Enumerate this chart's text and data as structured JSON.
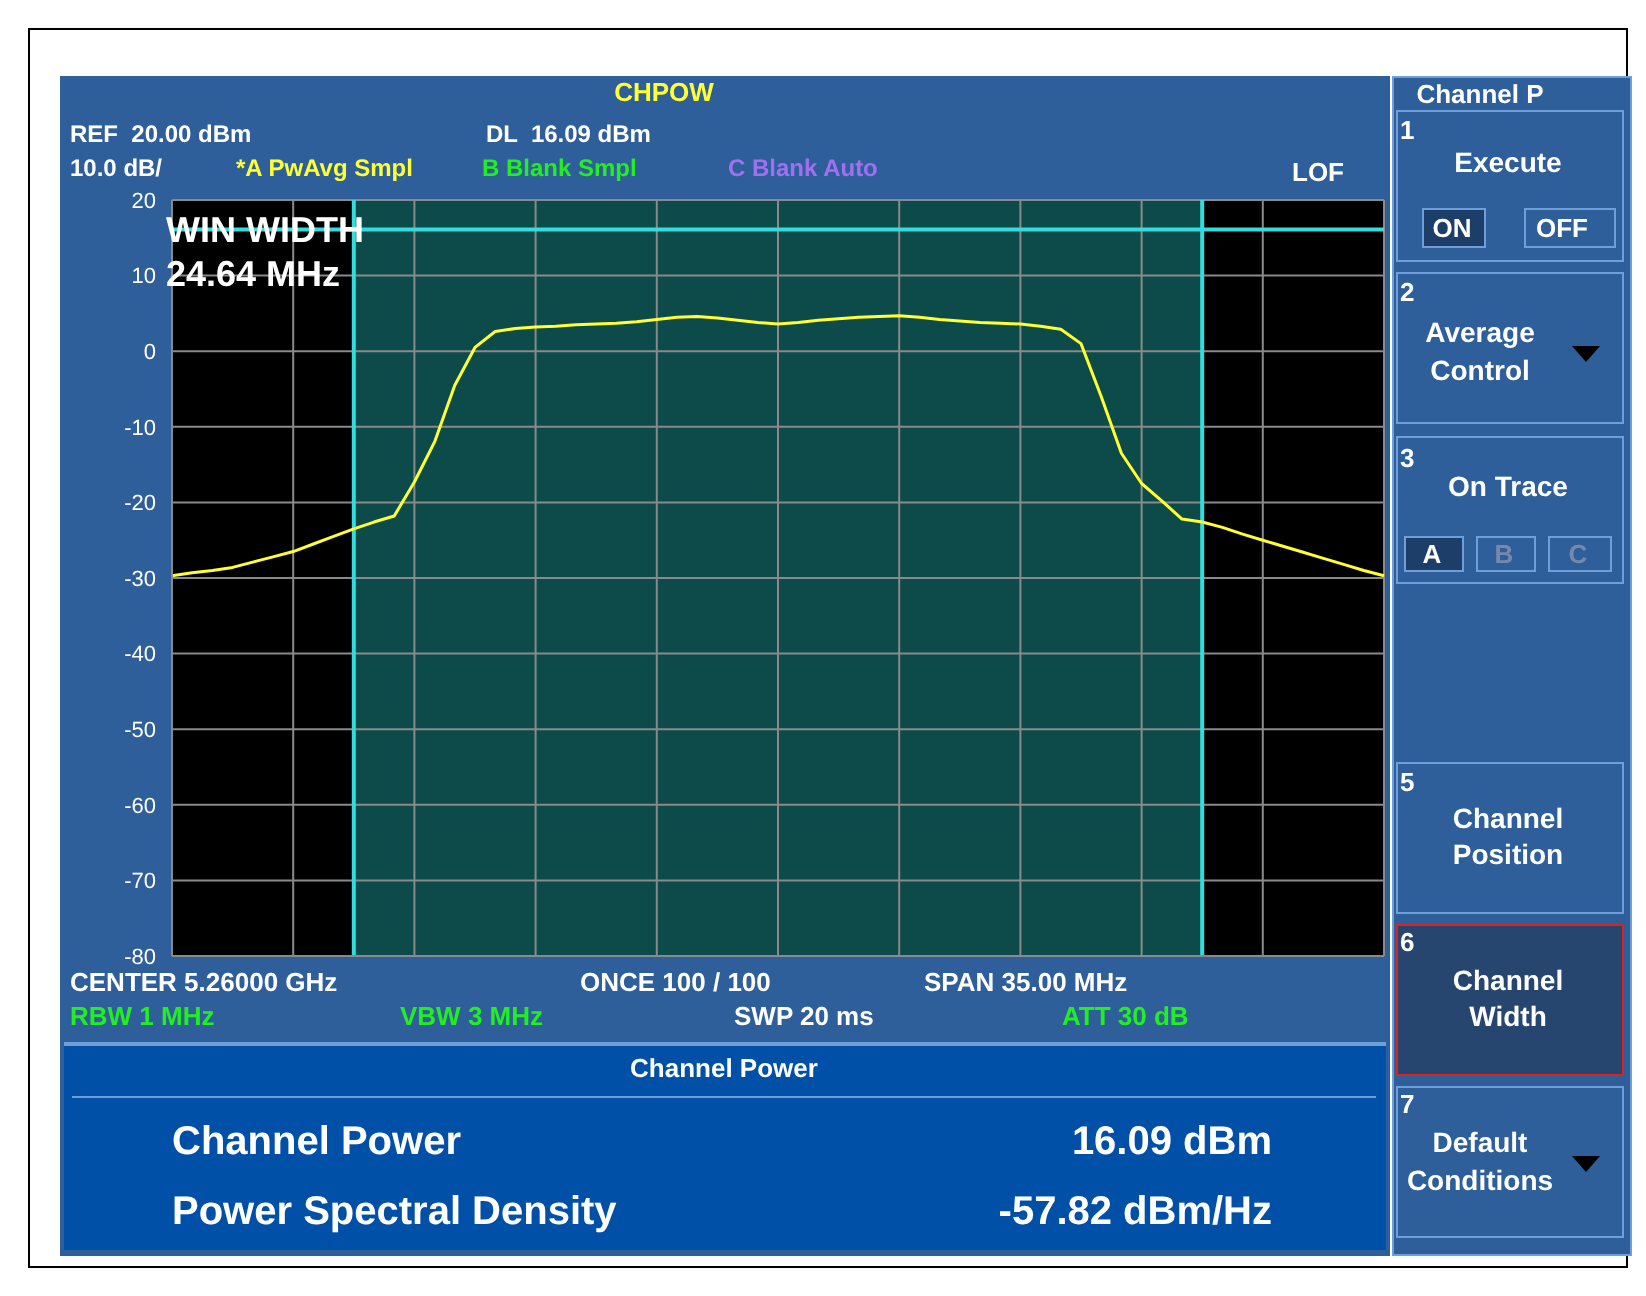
{
  "chart_data": {
    "type": "line",
    "title": "CHPOW",
    "categories": [
      null,
      null,
      null,
      null,
      null,
      null,
      null,
      null,
      null,
      null,
      null,
      null,
      null,
      null,
      null,
      null,
      null,
      null,
      null,
      null,
      null,
      null,
      null,
      null,
      null,
      null,
      null,
      null,
      null,
      null,
      null,
      null,
      null,
      null,
      null,
      null,
      null,
      null,
      null,
      null,
      null,
      null,
      null,
      null,
      null,
      null,
      null,
      null,
      null,
      null,
      null,
      null,
      null,
      null,
      null,
      null,
      null,
      null,
      null,
      null,
      null
    ],
    "series": [
      {
        "color": "#ffff33",
        "values": [
          -29.7,
          -29.3,
          -29,
          -28.6,
          -27.9,
          -27.2,
          -26.5,
          -25.5,
          -24.5,
          -23.5,
          -22.6,
          -21.8,
          -17.3,
          -12,
          -4.5,
          0.5,
          2.6,
          3,
          3.2,
          3.3,
          3.5,
          3.6,
          3.7,
          3.9,
          4.2,
          4.5,
          4.6,
          4.4,
          4.1,
          3.8,
          3.6,
          3.8,
          4.1,
          4.3,
          4.5,
          4.6,
          4.7,
          4.5,
          4.2,
          4,
          3.8,
          3.7,
          3.6,
          3.3,
          2.9,
          1,
          -6,
          -13.5,
          -17.5,
          -19.8,
          -22.2,
          -22.6,
          -23.3,
          -24.2,
          -25,
          -25.8,
          -26.6,
          -27.4,
          -28.2,
          -29,
          -29.7
        ]
      }
    ],
    "ylim": [
      -80,
      20
    ],
    "yticks": [
      -80,
      -70,
      -60,
      -50,
      -40,
      -30,
      -20,
      -10,
      0,
      10,
      20
    ],
    "tick_labels": "y",
    "grid": true,
    "marker": "none",
    "line_style": "solid",
    "ref_lines": [
      {
        "axis": "y",
        "value": 16.09,
        "color": "#33dddd"
      }
    ],
    "annotations": [
      "REF  20.00 dBm",
      "DL  16.09 dBm",
      "10.0 dB/",
      "*A PwAvg Smpl",
      "B Blank Smpl",
      "C Blank Auto",
      "LOF",
      "WIN WIDTH",
      "24.64 MHz",
      "CENTER 5.26000 GHz",
      "ONCE 100 / 100",
      "SPAN 35.00 MHz",
      "RBW 1 MHz",
      "VBW 3 MHz",
      "SWP 20 ms",
      "ATT 30 dB",
      "Channel Power",
      "Channel Power",
      "16.09 dBm",
      "Power Spectral Density",
      "-57.82 dBm/Hz",
      "Channel P",
      "1",
      "Execute",
      "ON",
      "OFF",
      "2",
      "Average",
      "Control",
      "3",
      "On Trace",
      "A",
      "B",
      "C",
      "5",
      "Channel",
      "Position",
      "6",
      "Channel",
      "Width",
      "7",
      "Default",
      "Conditions"
    ]
  }
}
